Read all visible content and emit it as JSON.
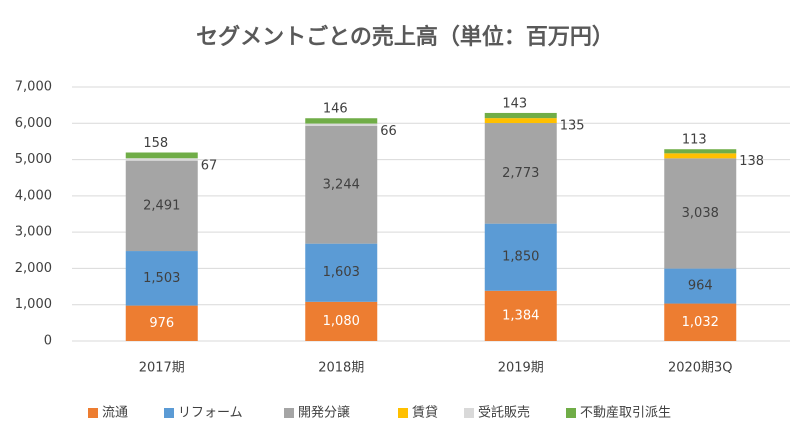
{
  "chart_data": {
    "type": "stacked-bar",
    "title": "セグメントごとの売上高（単位：百万円）",
    "categories": [
      "2017期",
      "2018期",
      "2019期",
      "2020期3Q"
    ],
    "series": [
      {
        "name": "流通",
        "color": "#ED7D31",
        "values": [
          976,
          1080,
          1384,
          1032
        ],
        "value_labels": [
          "976",
          "1,080",
          "1,384",
          "1,032"
        ]
      },
      {
        "name": "リフォーム",
        "color": "#5B9BD5",
        "values": [
          1503,
          1603,
          1850,
          964
        ],
        "value_labels": [
          "1,503",
          "1,603",
          "1,850",
          "964"
        ]
      },
      {
        "name": "開発分譲",
        "color": "#A5A5A5",
        "values": [
          2491,
          3244,
          2773,
          3038
        ],
        "value_labels": [
          "2,491",
          "3,244",
          "2,773",
          "3,038"
        ]
      },
      {
        "name": "賃貸",
        "color": "#FFC000",
        "values": [
          null,
          null,
          135,
          138
        ]
      },
      {
        "name": "受託販売",
        "color": "#D9D9D9",
        "values": [
          67,
          66,
          null,
          null
        ]
      },
      {
        "name": "不動産取引派生",
        "color": "#70AD47",
        "values": [
          158,
          146,
          143,
          113
        ]
      }
    ],
    "ylim": [
      0,
      7000
    ],
    "yticks": [
      0,
      {
        "value": 1000,
        "label": "1,000"
      },
      {
        "value": 2000,
        "label": "2,000"
      },
      {
        "value": 3000,
        "label": "3,000"
      },
      {
        "value": 4000,
        "label": "4,000"
      },
      {
        "value": 5000,
        "label": "5,000"
      },
      {
        "value": 6000,
        "label": "6,000"
      },
      {
        "value": 7000,
        "label": "7,000"
      }
    ],
    "grid": true,
    "legend": "bottom"
  }
}
